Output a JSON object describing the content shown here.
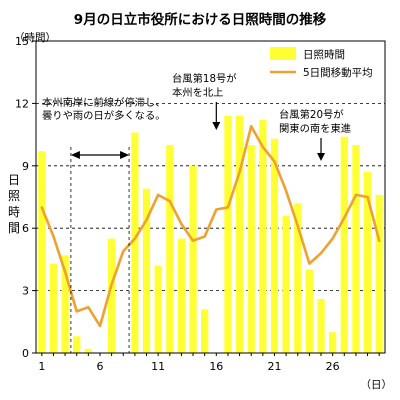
{
  "chart_data": {
    "type": "bar",
    "title": "9月の日立市役所における日照時間の推移",
    "ylabel": "日照時間",
    "y_unit": "（時間）",
    "x_unit": "（日）",
    "ylim": [
      0,
      15
    ],
    "yticks": [
      0,
      3,
      6,
      9,
      12,
      15
    ],
    "xlim": [
      1,
      30
    ],
    "xticks": [
      1,
      6,
      11,
      16,
      21,
      26
    ],
    "grid": "horizontal dashed",
    "legend_position": "top-right",
    "series": [
      {
        "name": "日照時間",
        "kind": "bar",
        "color": "#ffff33",
        "x": [
          1,
          2,
          3,
          4,
          5,
          6,
          7,
          8,
          9,
          10,
          11,
          12,
          13,
          14,
          15,
          16,
          17,
          18,
          19,
          20,
          21,
          22,
          23,
          24,
          25,
          26,
          27,
          28,
          29,
          30
        ],
        "values": [
          9.7,
          4.3,
          4.7,
          0.8,
          0.2,
          0,
          5.5,
          0,
          10.6,
          7.9,
          4.2,
          10.0,
          5.5,
          9.0,
          2.1,
          0,
          11.4,
          11.4,
          10.0,
          11.2,
          10.3,
          6.6,
          7.2,
          4.0,
          2.6,
          1.0,
          10.4,
          10.0,
          8.7,
          7.6
        ]
      },
      {
        "name": "5日間移動平均",
        "kind": "line",
        "color": "#f0a030",
        "x": [
          1,
          2,
          3,
          4,
          5,
          6,
          7,
          8,
          9,
          10,
          11,
          12,
          13,
          14,
          15,
          16,
          17,
          18,
          19,
          20,
          21,
          22,
          23,
          24,
          25,
          26,
          27,
          28,
          29,
          30
        ],
        "values": [
          7.0,
          5.6,
          3.9,
          2.0,
          2.2,
          1.3,
          3.3,
          4.9,
          5.5,
          6.4,
          7.6,
          7.3,
          6.2,
          5.4,
          5.6,
          6.9,
          7.0,
          8.7,
          10.9,
          9.9,
          9.2,
          7.8,
          6.1,
          4.3,
          4.8,
          5.5,
          6.5,
          7.6,
          7.5,
          5.4
        ]
      }
    ],
    "annotations": [
      {
        "text_lines": [
          "本州南岸に前線が停滞し、",
          "曇りや雨の日が多くなる。"
        ],
        "arrow": "double",
        "span_x": [
          3.5,
          8.5
        ]
      },
      {
        "text_lines": [
          "台風第18号が",
          "本州を北上"
        ],
        "arrow": "down",
        "at_x": 16
      },
      {
        "text_lines": [
          "台風第20号が",
          "関東の南を東進"
        ],
        "arrow": "down",
        "at_x": 25
      }
    ]
  }
}
